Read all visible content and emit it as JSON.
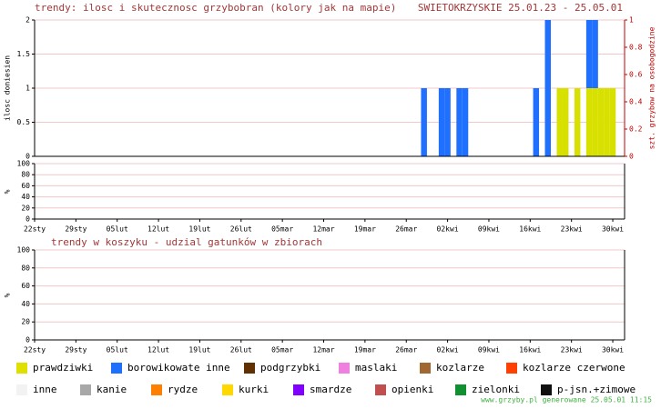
{
  "chart_data": [
    {
      "type": "bar",
      "title": "trendy: ilosc i skutecznosc grzybobran (kolory jak na mapie)",
      "subtitle": "SWIETOKRZYSKIE 25.01.23 - 25.05.01",
      "y_label": "ilosc doniesien",
      "y2_label": "szt. grzybow na osobogodzine",
      "x": [
        66,
        69,
        70,
        72,
        73,
        85,
        87,
        89,
        90,
        92,
        94,
        95,
        96,
        97,
        98
      ],
      "series": [
        {
          "name": "prawdziwki",
          "color": "#d8e000",
          "values": [
            0,
            0,
            0,
            0,
            0,
            0,
            0,
            1,
            1,
            1,
            1,
            1,
            1,
            1,
            1
          ]
        },
        {
          "name": "borowikowate inne",
          "color": "#2070ff",
          "values": [
            1,
            1,
            1,
            1,
            1,
            1,
            2,
            0,
            0,
            0,
            1,
            1,
            0,
            0,
            0
          ]
        }
      ],
      "xlim": [
        0,
        100
      ],
      "ylim": [
        0,
        2
      ],
      "yticks": [
        0,
        0.5,
        1,
        1.5,
        2
      ],
      "y2lim": [
        0,
        1
      ],
      "y2ticks": [
        0,
        0.2,
        0.4,
        0.6,
        0.8,
        1
      ],
      "grid": true
    },
    {
      "type": "bar",
      "y_label": "%",
      "xlim": [
        0,
        100
      ],
      "xticks": [
        {
          "value": 0,
          "label": "22sty"
        },
        {
          "value": 7,
          "label": "29sty"
        },
        {
          "value": 14,
          "label": "05lut"
        },
        {
          "value": 21,
          "label": "12lut"
        },
        {
          "value": 28,
          "label": "19lut"
        },
        {
          "value": 35,
          "label": "26lut"
        },
        {
          "value": 42,
          "label": "05mar"
        },
        {
          "value": 49,
          "label": "12mar"
        },
        {
          "value": 56,
          "label": "19mar"
        },
        {
          "value": 63,
          "label": "26mar"
        },
        {
          "value": 70,
          "label": "02kwi"
        },
        {
          "value": 77,
          "label": "09kwi"
        },
        {
          "value": 84,
          "label": "16kwi"
        },
        {
          "value": 91,
          "label": "23kwi"
        },
        {
          "value": 98,
          "label": "30kwi"
        }
      ],
      "ylim": [
        0,
        100
      ],
      "yticks": [
        0,
        20,
        40,
        60,
        80,
        100
      ],
      "grid": true
    },
    {
      "type": "bar",
      "title": "trendy w koszyku - udzial gatunków w zbiorach",
      "y_label": "%",
      "xlim": [
        0,
        100
      ],
      "xticks": [
        {
          "value": 0,
          "label": "22sty"
        },
        {
          "value": 7,
          "label": "29sty"
        },
        {
          "value": 14,
          "label": "05lut"
        },
        {
          "value": 21,
          "label": "12lut"
        },
        {
          "value": 28,
          "label": "19lut"
        },
        {
          "value": 35,
          "label": "26lut"
        },
        {
          "value": 42,
          "label": "05mar"
        },
        {
          "value": 49,
          "label": "12mar"
        },
        {
          "value": 56,
          "label": "19mar"
        },
        {
          "value": 63,
          "label": "26mar"
        },
        {
          "value": 70,
          "label": "02kwi"
        },
        {
          "value": 77,
          "label": "09kwi"
        },
        {
          "value": 84,
          "label": "16kwi"
        },
        {
          "value": 91,
          "label": "23kwi"
        },
        {
          "value": 98,
          "label": "30kwi"
        }
      ],
      "ylim": [
        0,
        100
      ],
      "yticks": [
        0,
        20,
        40,
        60,
        80,
        100
      ],
      "grid": true
    }
  ],
  "legend": [
    [
      {
        "name": "prawdziwki",
        "color": "#e0e000"
      },
      {
        "name": "borowikowate inne",
        "color": "#2070ff"
      },
      {
        "name": "podgrzybki",
        "color": "#603000"
      },
      {
        "name": "maslaki",
        "color": "#f080e0"
      },
      {
        "name": "kozlarze",
        "color": "#a06830"
      },
      {
        "name": "kozlarze czerwone",
        "color": "#ff4000"
      }
    ],
    [
      {
        "name": "inne",
        "color": "#f2f2f2"
      },
      {
        "name": "kanie",
        "color": "#a8a8a8"
      },
      {
        "name": "rydze",
        "color": "#ff8000"
      },
      {
        "name": "kurki",
        "color": "#ffd800"
      },
      {
        "name": "smardze",
        "color": "#8000ff"
      },
      {
        "name": "opienki",
        "color": "#c05050"
      },
      {
        "name": "zielonki",
        "color": "#109030"
      },
      {
        "name": "p-jsn.+zimowe",
        "color": "#101010"
      }
    ]
  ],
  "footer": "www.grzyby.pl generowane 25.05.01  11:15"
}
